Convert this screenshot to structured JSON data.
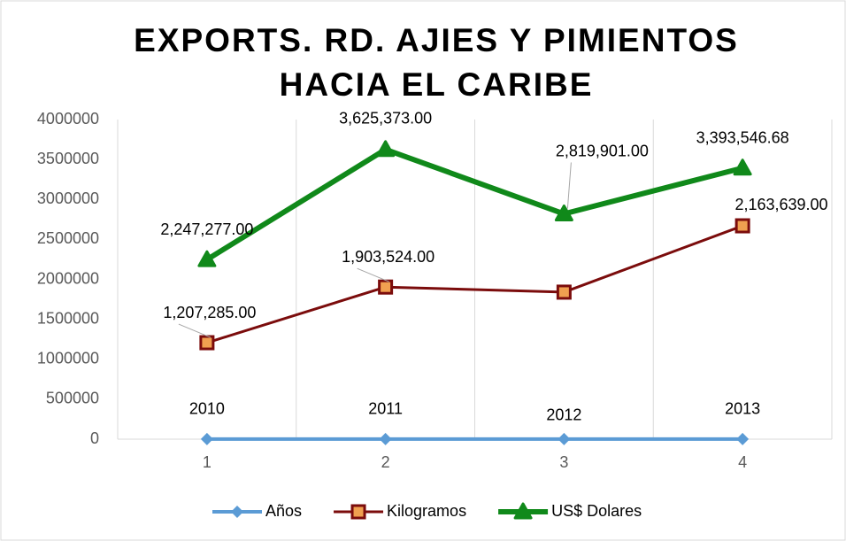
{
  "chart_data": {
    "type": "line",
    "title": [
      "EXPORTS. RD. AJIES Y PIMIENTOS",
      "HACIA EL CARIBE"
    ],
    "categories": [
      1,
      2,
      3,
      4
    ],
    "series": [
      {
        "name": "Años",
        "color": "#5b9bd5",
        "marker": "diamond",
        "values": [
          2010,
          2011,
          2012,
          2013
        ]
      },
      {
        "name": "Kilogramos",
        "color": "#7b0c0c",
        "marker_fill": "#f0a050",
        "marker": "square",
        "values": [
          1207285,
          1903524,
          1840000,
          2670000
        ],
        "value_labels": [
          "1,207,285.00",
          "1,903,524.00",
          null,
          null
        ]
      },
      {
        "name": "US$ Dolares",
        "color": "#10891a",
        "marker": "triangle",
        "values": [
          2247277,
          3625373,
          2819901,
          3393546.68
        ],
        "value_labels": [
          "2,247,277.00",
          "3,625,373.00",
          "2,819,901.00",
          "3,393,546.68"
        ]
      }
    ],
    "annotations": [
      "2,163,639.00"
    ],
    "ylim": [
      0,
      4000000
    ],
    "yticks": [
      0,
      500000,
      1000000,
      1500000,
      2000000,
      2500000,
      3000000,
      3500000,
      4000000
    ],
    "grid": "x",
    "legend": "bottom"
  }
}
